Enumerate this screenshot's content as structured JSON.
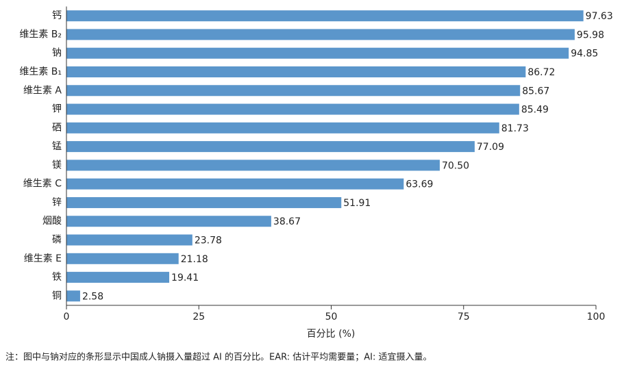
{
  "chart_data": {
    "type": "bar",
    "orientation": "horizontal",
    "categories": [
      "钙",
      "维生素 B₂",
      "钠",
      "维生素 B₁",
      "维生素 A",
      "钾",
      "硒",
      "锰",
      "镁",
      "维生素 C",
      "锌",
      "烟酸",
      "磷",
      "维生素 E",
      "铁",
      "铜"
    ],
    "values": [
      97.63,
      95.98,
      94.85,
      86.72,
      85.67,
      85.49,
      81.73,
      77.09,
      70.5,
      63.69,
      51.91,
      38.67,
      23.78,
      21.18,
      19.41,
      2.58
    ],
    "value_labels": [
      "97.63",
      "95.98",
      "94.85",
      "86.72",
      "85.67",
      "85.49",
      "81.73",
      "77.09",
      "70.50",
      "63.69",
      "51.91",
      "38.67",
      "23.78",
      "21.18",
      "19.41",
      "2.58"
    ],
    "color": "#5b96cb",
    "xlim": [
      0,
      100
    ],
    "xticks": [
      0,
      25,
      50,
      75,
      100
    ],
    "x_label": "百分比 (%)",
    "note": "注：图中与钠对应的条形显示中国成人钠摄入量超过 AI 的百分比。EAR: 估计平均需要量；AI: 适宜摄入量。"
  }
}
